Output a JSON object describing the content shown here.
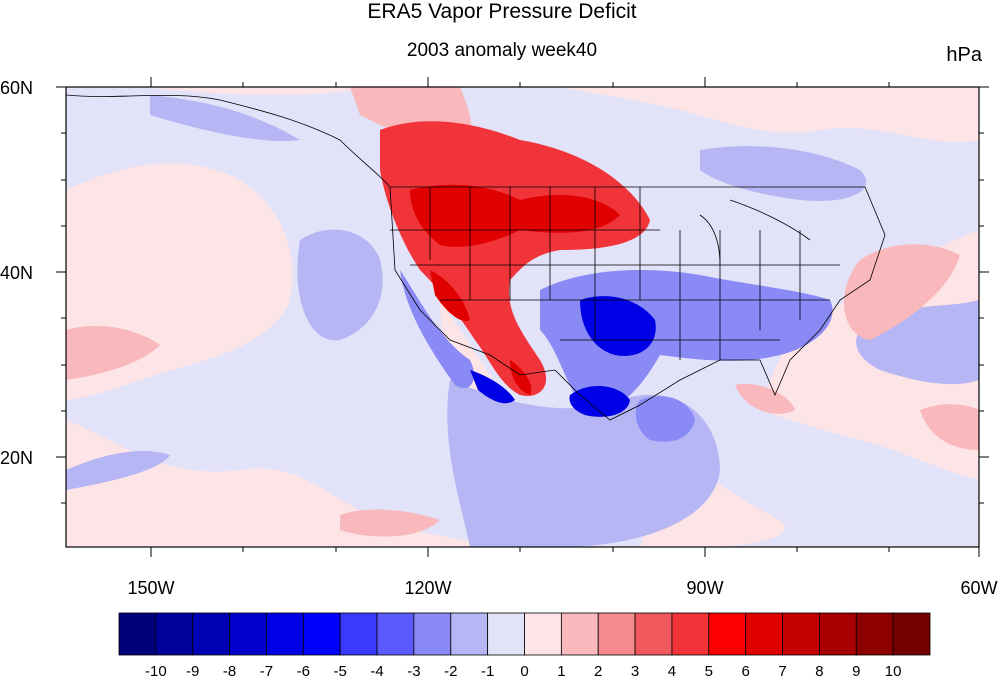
{
  "title": "ERA5 Vapor Pressure Deficit",
  "subtitle": "2003 anomaly week40",
  "units": "hPa",
  "lat_ticks": [
    "60N",
    "40N",
    "20N"
  ],
  "lon_ticks": [
    "150W",
    "120W",
    "90W",
    "60W"
  ],
  "colorbar": {
    "labels": [
      "-10",
      "-9",
      "-8",
      "-7",
      "-6",
      "-5",
      "-4",
      "-3",
      "-2",
      "-1",
      "0",
      "1",
      "2",
      "3",
      "4",
      "5",
      "6",
      "7",
      "8",
      "9",
      "10"
    ],
    "colors": [
      "#00007a",
      "#00009a",
      "#0000b4",
      "#0000cc",
      "#0000e6",
      "#0000ff",
      "#3a3aff",
      "#5a5aff",
      "#8a8af6",
      "#b6b6f4",
      "#e2e2f8",
      "#fde4e6",
      "#f9b8bc",
      "#f48a8e",
      "#f05a5e",
      "#f0343a",
      "#fb0000",
      "#e00000",
      "#c40000",
      "#a80000",
      "#8c0000",
      "#740000"
    ]
  },
  "map_colors": {
    "background": "#e2e2f8",
    "ocean_light_red": "#fde4e6",
    "blue_light": "#b6b6f4",
    "blue_mid": "#8a8af6",
    "blue_strong": "#3a3aff",
    "blue_deep": "#0000e6",
    "red_light": "#f9b8bc",
    "red_mid": "#f48a8e",
    "red_strong": "#f0343a",
    "red_deep": "#e00000"
  }
}
